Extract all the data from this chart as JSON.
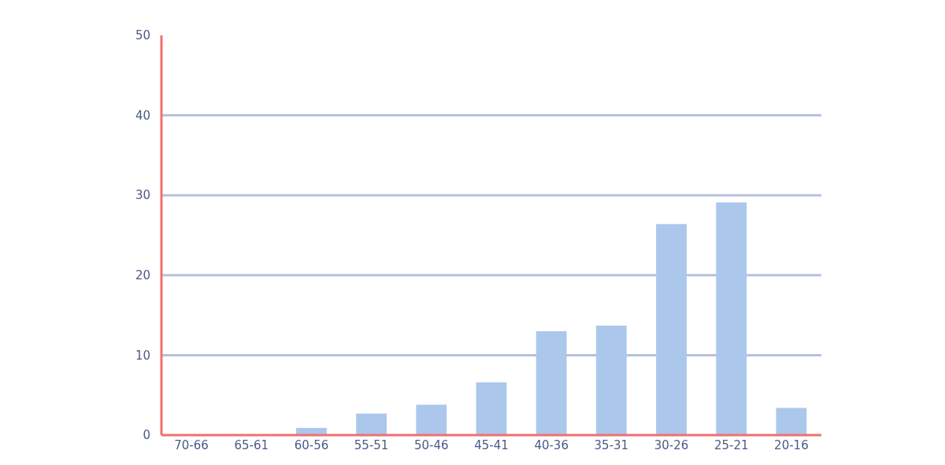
{
  "chart_data": {
    "type": "bar",
    "categories": [
      "70-66",
      "65-61",
      "60-56",
      "55-51",
      "50-46",
      "45-41",
      "40-36",
      "35-31",
      "30-26",
      "25-21",
      "20-16"
    ],
    "values": [
      0,
      0,
      0.9,
      2.7,
      3.8,
      6.6,
      13.0,
      13.7,
      26.4,
      29.1,
      3.4
    ],
    "color": "#abc8ec",
    "ylim": [
      0,
      50
    ],
    "yticks": [
      0,
      10,
      20,
      30,
      40,
      50
    ],
    "grid": "y"
  }
}
